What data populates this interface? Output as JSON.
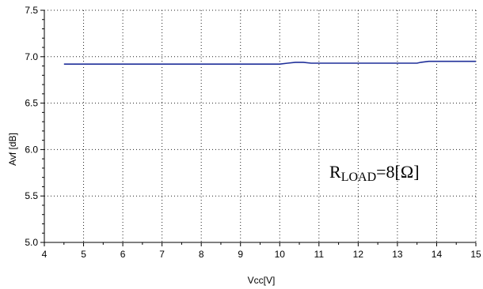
{
  "chart_data": {
    "type": "line",
    "title": "",
    "xlabel": "Vcc[V]",
    "ylabel": "Avf [dB]",
    "xlim": [
      4,
      15
    ],
    "ylim": [
      5.0,
      7.5
    ],
    "x_ticks": [
      "4",
      "5",
      "6",
      "7",
      "8",
      "9",
      "10",
      "11",
      "12",
      "13",
      "14",
      "15"
    ],
    "y_ticks": [
      "5.0",
      "5.5",
      "6.0",
      "6.5",
      "7.0",
      "7.5"
    ],
    "grid": true,
    "line_color": "#1f2f99",
    "annotation": {
      "main": "R",
      "sub": "LOAD",
      "rest": "=8[Ω]"
    },
    "series": [
      {
        "x": [
          4.5,
          5,
          6,
          7,
          8,
          9,
          10,
          10.2,
          10.4,
          10.6,
          10.8,
          11,
          11.5,
          12,
          12.5,
          13,
          13.5,
          13.6,
          13.8,
          14,
          14.5,
          15
        ],
        "y": [
          6.92,
          6.92,
          6.92,
          6.92,
          6.92,
          6.92,
          6.92,
          6.93,
          6.94,
          6.94,
          6.93,
          6.93,
          6.93,
          6.93,
          6.93,
          6.93,
          6.93,
          6.94,
          6.95,
          6.95,
          6.95,
          6.95
        ]
      }
    ]
  }
}
